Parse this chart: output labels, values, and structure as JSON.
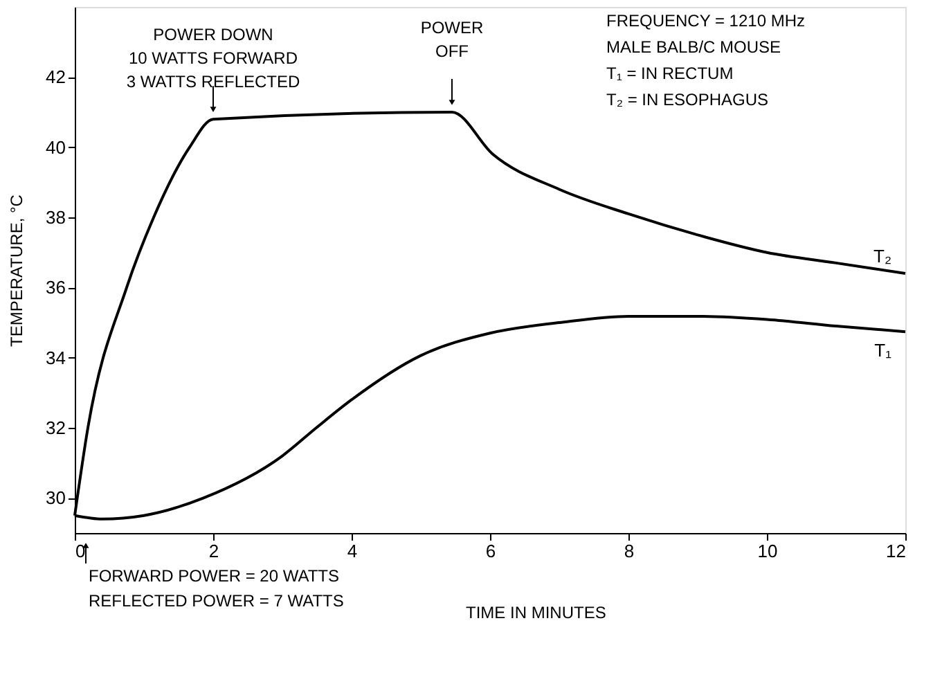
{
  "chart_data": {
    "type": "line",
    "xlabel": "TIME IN MINUTES",
    "ylabel": "TEMPERATURE, °C",
    "xlim": [
      0,
      12
    ],
    "ylim": [
      29,
      44
    ],
    "xticks": [
      0,
      2,
      4,
      6,
      8,
      10,
      12
    ],
    "yticks": [
      30,
      32,
      34,
      36,
      38,
      40,
      42
    ],
    "grid": false,
    "marker": "none",
    "line_style": "solid",
    "series": [
      {
        "name": "T₂",
        "color": "#000000",
        "x": [
          0,
          0.19,
          0.75,
          1.14,
          1.66,
          2,
          5.45,
          6.04,
          7,
          8,
          9,
          10,
          11,
          12
        ],
        "values": [
          29.5,
          32,
          36,
          38,
          40,
          40.8,
          41.0,
          39.8,
          38.8,
          38.1,
          37.5,
          37.0,
          36.7,
          36.4
        ]
      },
      {
        "name": "T₁",
        "color": "#000000",
        "x": [
          0,
          0.4,
          1,
          1.86,
          3,
          3.49,
          4,
          5,
          6,
          7,
          8,
          9,
          10,
          11,
          12
        ],
        "values": [
          29.5,
          29.4,
          29.5,
          30.0,
          31.2,
          32.0,
          32.8,
          34.06,
          34.7,
          35.0,
          35.18,
          35.18,
          35.09,
          34.9,
          34.74
        ]
      }
    ],
    "annotations": [
      {
        "text": "POWER DOWN\n10 WATTS FORWARD\n3 WATTS REFLECTED",
        "x": 2,
        "y": 40.8
      },
      {
        "text": "POWER\nOFF",
        "x": 5.45,
        "y": 41.0
      },
      "FREQUENCY = 1210 MHz\nMALE BALB/C MOUSE\nT₁ = IN RECTUM\nT₂ = IN ESOPHAGUS",
      "FORWARD POWER = 20 WATTS\nREFLECTED POWER = 7 WATTS"
    ]
  }
}
